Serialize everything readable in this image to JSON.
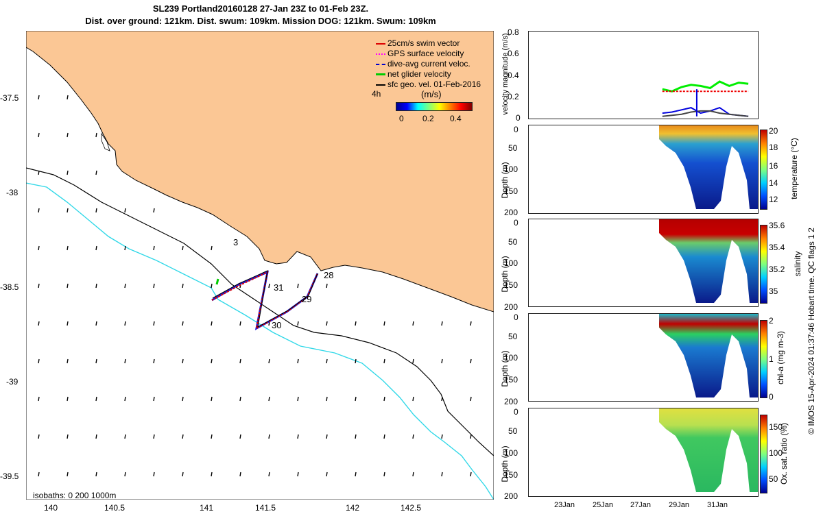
{
  "title": {
    "line1": "SL239 Portland20160128 27-Jan 23Z to 01-Feb 23Z.",
    "line2": "Dist. over ground: 121km. Dist. swum: 109km. Mission DOG: 121km. Swum: 109km"
  },
  "map": {
    "legend": [
      {
        "label": "25cm/s swim vector",
        "color": "#dd0000"
      },
      {
        "label": "GPS surface velocity",
        "color": "#ff00ff"
      },
      {
        "label": "dive-avg current veloc.",
        "color": "#0000cc"
      },
      {
        "label": "net glider velocity",
        "color": "#00cc00"
      },
      {
        "label": "sfc geo. vel. 01-Feb-2016",
        "color": "#000000"
      }
    ],
    "interval_label": "4h",
    "speed_scale": {
      "label": "(m/s)",
      "ticks": [
        "0",
        "0.2",
        "0.4"
      ]
    },
    "isobaths_label": "isobaths: 0   200  1000m",
    "lon_ticks": [
      "140",
      "140.5",
      "141",
      "141.5",
      "142",
      "142.5"
    ],
    "lat_ticks": [
      "-37.5",
      "-38",
      "-38.5",
      "-39",
      "-39.5"
    ],
    "day_labels": [
      "3",
      "28",
      "29",
      "30",
      "31"
    ],
    "colors": {
      "land": "#fbc795",
      "sea": "#ffffff",
      "isobath_200": "#000000",
      "isobath_1000": "#30d8e8",
      "track": "#dd0000"
    }
  },
  "chart_data": [
    {
      "type": "line",
      "ylabel": "velocity magnitude (m/s)",
      "ylim": [
        0,
        0.8
      ],
      "yticks": [
        "0",
        "0.2",
        "0.4",
        "0.6",
        "0.8"
      ],
      "x": [
        28.0,
        28.5,
        29.0,
        29.5,
        30.0,
        30.5,
        31.0,
        31.5,
        32.0,
        32.5
      ],
      "series": [
        {
          "color": "#00ee00",
          "values": [
            0.27,
            0.25,
            0.29,
            0.31,
            0.3,
            0.28,
            0.34,
            0.3,
            0.33,
            0.32
          ]
        },
        {
          "color": "#ee0000",
          "values": [
            0.25,
            0.25,
            0.25,
            0.25,
            0.25,
            0.25,
            0.25,
            0.25,
            0.25,
            0.25
          ]
        },
        {
          "color": "#0000dd",
          "values": [
            0.05,
            0.06,
            0.08,
            0.1,
            0.05,
            0.07,
            0.1,
            0.04,
            0.03,
            0.02
          ]
        },
        {
          "color": "#444444",
          "values": [
            0.02,
            0.03,
            0.04,
            0.06,
            0.07,
            0.07,
            0.05,
            0.04,
            0.03,
            0.02
          ]
        }
      ]
    },
    {
      "type": "heatmap",
      "ylabel": "Depth (m)",
      "clabel": "temperature (°C)",
      "yticks": [
        "0",
        "50",
        "100",
        "150",
        "200"
      ],
      "cticks": [
        "12",
        "14",
        "16",
        "18",
        "20"
      ],
      "crange": [
        11,
        20.5
      ]
    },
    {
      "type": "heatmap",
      "ylabel": "Depth (m)",
      "clabel": "salinity",
      "yticks": [
        "0",
        "50",
        "100",
        "150",
        "200"
      ],
      "cticks": [
        "35",
        "35.2",
        "35.4",
        "35.6"
      ],
      "crange": [
        34.9,
        35.6
      ]
    },
    {
      "type": "heatmap",
      "ylabel": "Depth (m)",
      "clabel": "chl-a (mg m-3)",
      "yticks": [
        "0",
        "50",
        "100",
        "150",
        "200"
      ],
      "cticks": [
        "0",
        "1",
        "2"
      ],
      "crange": [
        0,
        2
      ]
    },
    {
      "type": "heatmap",
      "ylabel": "Depth (m)",
      "clabel": "Ox. sat. ratio (%)",
      "yticks": [
        "0",
        "50",
        "100",
        "150",
        "200"
      ],
      "cticks": [
        "50",
        "100",
        "150"
      ],
      "crange": [
        25,
        175
      ]
    }
  ],
  "time_axis": {
    "ticks": [
      "23Jan",
      "25Jan",
      "27Jan",
      "29Jan",
      "31Jan"
    ]
  },
  "footer": "© IMOS 15-Apr-2024 01:37:46 Hobart time. QC flags 1  2"
}
